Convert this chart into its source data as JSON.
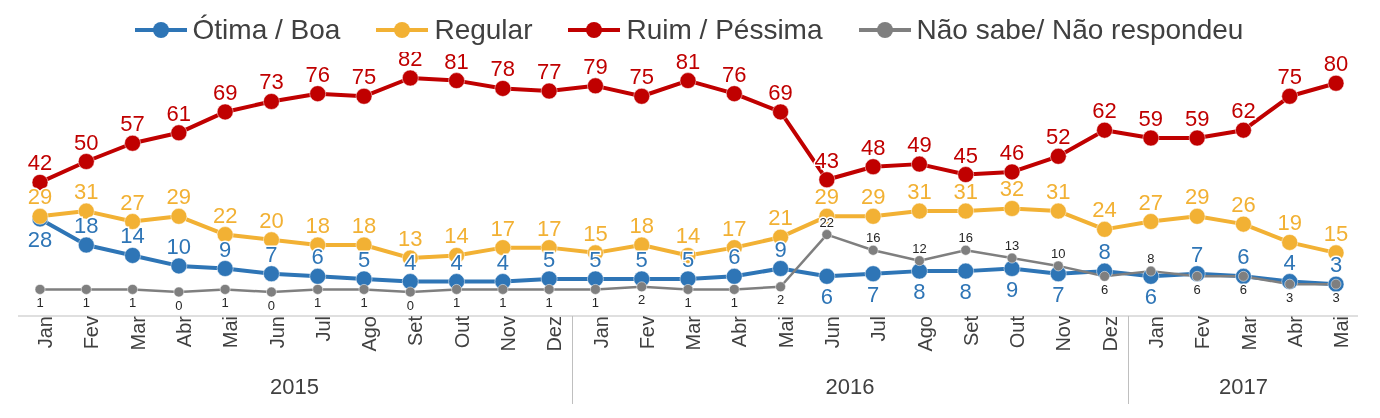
{
  "chart_data": {
    "type": "line",
    "categories": [
      "Jan",
      "Fev",
      "Mar",
      "Abr",
      "Mai",
      "Jun",
      "Jul",
      "Ago",
      "Set",
      "Out",
      "Nov",
      "Dez",
      "Jan",
      "Fev",
      "Mar",
      "Abr",
      "Mai",
      "Jun",
      "Jul",
      "Ago",
      "Set",
      "Out",
      "Nov",
      "Dez",
      "Jan",
      "Fev",
      "Mar",
      "Abr",
      "Mai"
    ],
    "series": [
      {
        "name": "Ótima / Boa",
        "color": "#2e75b6",
        "values": [
          28,
          18,
          14,
          10,
          9,
          7,
          6,
          5,
          4,
          4,
          4,
          5,
          5,
          5,
          5,
          6,
          9,
          6,
          7,
          8,
          8,
          9,
          7,
          8,
          6,
          7,
          6,
          4,
          3
        ]
      },
      {
        "name": "Regular",
        "color": "#f2b134",
        "values": [
          29,
          31,
          27,
          29,
          22,
          20,
          18,
          18,
          13,
          14,
          17,
          17,
          15,
          18,
          14,
          17,
          21,
          29,
          29,
          31,
          31,
          32,
          31,
          24,
          27,
          29,
          26,
          19,
          15
        ]
      },
      {
        "name": "Ruim / Péssima",
        "color": "#c00000",
        "values": [
          42,
          50,
          57,
          61,
          69,
          73,
          76,
          75,
          82,
          81,
          78,
          77,
          79,
          75,
          81,
          76,
          69,
          43,
          48,
          49,
          45,
          46,
          52,
          62,
          59,
          59,
          62,
          75,
          80
        ]
      },
      {
        "name": "Não sabe/ Não respondeu",
        "color": "#7f7f7f",
        "values": [
          1,
          1,
          1,
          0,
          1,
          0,
          1,
          1,
          0,
          1,
          1,
          1,
          1,
          2,
          1,
          1,
          2,
          22,
          16,
          12,
          16,
          13,
          10,
          6,
          8,
          6,
          6,
          3,
          3
        ]
      }
    ],
    "data_labels": true,
    "legend": "top",
    "marker": "circle",
    "annotations": [
      "2015",
      "2016",
      "2017"
    ]
  }
}
